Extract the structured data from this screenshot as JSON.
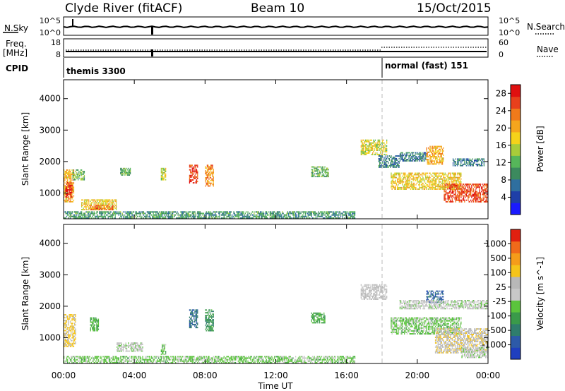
{
  "header": {
    "station": "Clyde River (fitACF)",
    "beam": "Beam 10",
    "date": "15/Oct/2015"
  },
  "strips": {
    "nsky": {
      "label": "N.Sky",
      "ticks": [
        "10^5",
        "10^0"
      ]
    },
    "nsearch": {
      "label": "N.Search",
      "ticks": [
        "10^5",
        "10^0"
      ]
    },
    "freq": {
      "label_top": "Freq.",
      "label_bottom": "[MHz]",
      "ticks": [
        "18",
        "8"
      ]
    },
    "nave": {
      "label": "Nave",
      "ticks": [
        "60",
        "0"
      ]
    },
    "cpid": {
      "label": "CPID",
      "segments": [
        {
          "text": "themis 3300",
          "start_hour": 0
        },
        {
          "text": "normal (fast) 151",
          "start_hour": 18
        }
      ]
    }
  },
  "time_axis": {
    "ticks": [
      "00:00",
      "04:00",
      "08:00",
      "12:00",
      "16:00",
      "20:00",
      "00:00"
    ],
    "tick_hours": [
      0,
      4,
      8,
      12,
      16,
      20,
      24
    ],
    "label": "Time UT"
  },
  "colors": {
    "power_scale": [
      "#1a1aff",
      "#1f3fa8",
      "#2f6f9f",
      "#3c8a5e",
      "#56b65a",
      "#a8cc3a",
      "#f5d21a",
      "#f5a51d",
      "#f07a1a",
      "#e8401c",
      "#e01010"
    ],
    "velocity_scale": [
      "#1f3fbf",
      "#2d5aa8",
      "#2f7d6c",
      "#3a9a4a",
      "#5bc43c",
      "#c8c8c8",
      "#b8b8b8",
      "#f5c41a",
      "#f59c1a",
      "#f06a1a",
      "#e02010"
    ],
    "cpid_marker": "#bbbbbb"
  },
  "chart_data": [
    {
      "type": "heatmap",
      "title": "",
      "xlabel": "",
      "ylabel": "Slant Range [km]",
      "xlim": [
        0,
        24
      ],
      "ylim": [
        180,
        4600
      ],
      "yticks": [
        1000,
        2000,
        3000,
        4000
      ],
      "colorbar": {
        "label": "Power [dB]",
        "ticks": [
          "4",
          "8",
          "12",
          "16",
          "20",
          "24",
          "28"
        ],
        "range": [
          0,
          30
        ]
      },
      "patches": [
        {
          "t": [
            0.0,
            0.6
          ],
          "r": [
            700,
            1750
          ],
          "v": 20
        },
        {
          "t": [
            0.1,
            0.5
          ],
          "r": [
            850,
            1350
          ],
          "v": 28
        },
        {
          "t": [
            0.5,
            1.2
          ],
          "r": [
            1400,
            1750
          ],
          "v": 12
        },
        {
          "t": [
            1.0,
            3.0
          ],
          "r": [
            450,
            800
          ],
          "v": 18
        },
        {
          "t": [
            1.5,
            2.8
          ],
          "r": [
            450,
            620
          ],
          "v": 24
        },
        {
          "t": [
            0.0,
            16.5
          ],
          "r": [
            180,
            420
          ],
          "v": 10
        },
        {
          "t": [
            3.2,
            3.8
          ],
          "r": [
            1550,
            1800
          ],
          "v": 12
        },
        {
          "t": [
            5.5,
            5.8
          ],
          "r": [
            1400,
            1800
          ],
          "v": 16
        },
        {
          "t": [
            7.1,
            7.6
          ],
          "r": [
            1300,
            1900
          ],
          "v": 26
        },
        {
          "t": [
            8.0,
            8.5
          ],
          "r": [
            1200,
            1900
          ],
          "v": 22
        },
        {
          "t": [
            14.0,
            15.0
          ],
          "r": [
            1500,
            1850
          ],
          "v": 12
        },
        {
          "t": [
            16.8,
            18.3
          ],
          "r": [
            2200,
            2700
          ],
          "v": 16
        },
        {
          "t": [
            17.8,
            19.0
          ],
          "r": [
            1800,
            2200
          ],
          "v": 8
        },
        {
          "t": [
            18.5,
            22.5
          ],
          "r": [
            1100,
            1650
          ],
          "v": 18
        },
        {
          "t": [
            21.5,
            24.0
          ],
          "r": [
            700,
            1300
          ],
          "v": 26
        },
        {
          "t": [
            20.5,
            21.5
          ],
          "r": [
            1900,
            2500
          ],
          "v": 20
        },
        {
          "t": [
            22.0,
            23.8
          ],
          "r": [
            1850,
            2100
          ],
          "v": 8
        },
        {
          "t": [
            19.0,
            20.5
          ],
          "r": [
            2000,
            2300
          ],
          "v": 8
        }
      ]
    },
    {
      "type": "heatmap",
      "title": "",
      "xlabel": "Time UT",
      "ylabel": "Slant Range [km]",
      "xlim": [
        0,
        24
      ],
      "ylim": [
        180,
        4600
      ],
      "yticks": [
        1000,
        2000,
        3000,
        4000
      ],
      "colorbar": {
        "label": "Velocity [m s^-1]",
        "ticks": [
          "1000",
          "500",
          "100",
          "25",
          "-25",
          "-100",
          "-500",
          "-1000"
        ],
        "range": [
          -1000,
          1000
        ]
      },
      "patches": [
        {
          "t": [
            0.0,
            0.7
          ],
          "r": [
            700,
            1750
          ],
          "v": 300
        },
        {
          "t": [
            1.5,
            2.0
          ],
          "r": [
            1200,
            1650
          ],
          "v": -250
        },
        {
          "t": [
            0.0,
            16.5
          ],
          "r": [
            180,
            420
          ],
          "v": -150
        },
        {
          "t": [
            3.0,
            4.5
          ],
          "r": [
            550,
            850
          ],
          "v": 0
        },
        {
          "t": [
            5.5,
            5.8
          ],
          "r": [
            450,
            800
          ],
          "v": -200
        },
        {
          "t": [
            7.1,
            7.6
          ],
          "r": [
            1300,
            1900
          ],
          "v": -600
        },
        {
          "t": [
            8.0,
            8.5
          ],
          "r": [
            1200,
            1900
          ],
          "v": -400
        },
        {
          "t": [
            14.0,
            14.8
          ],
          "r": [
            1450,
            1800
          ],
          "v": -300
        },
        {
          "t": [
            16.8,
            18.3
          ],
          "r": [
            2200,
            2700
          ],
          "v": 80
        },
        {
          "t": [
            18.5,
            22.5
          ],
          "r": [
            1100,
            1650
          ],
          "v": -150
        },
        {
          "t": [
            20.5,
            21.5
          ],
          "r": [
            2100,
            2500
          ],
          "v": -700
        },
        {
          "t": [
            19.0,
            24.0
          ],
          "r": [
            1900,
            2200
          ],
          "v": 0
        },
        {
          "t": [
            21.0,
            24.0
          ],
          "r": [
            500,
            1300
          ],
          "v": 200
        },
        {
          "t": [
            22.5,
            24.0
          ],
          "r": [
            350,
            700
          ],
          "v": 0
        }
      ]
    }
  ]
}
